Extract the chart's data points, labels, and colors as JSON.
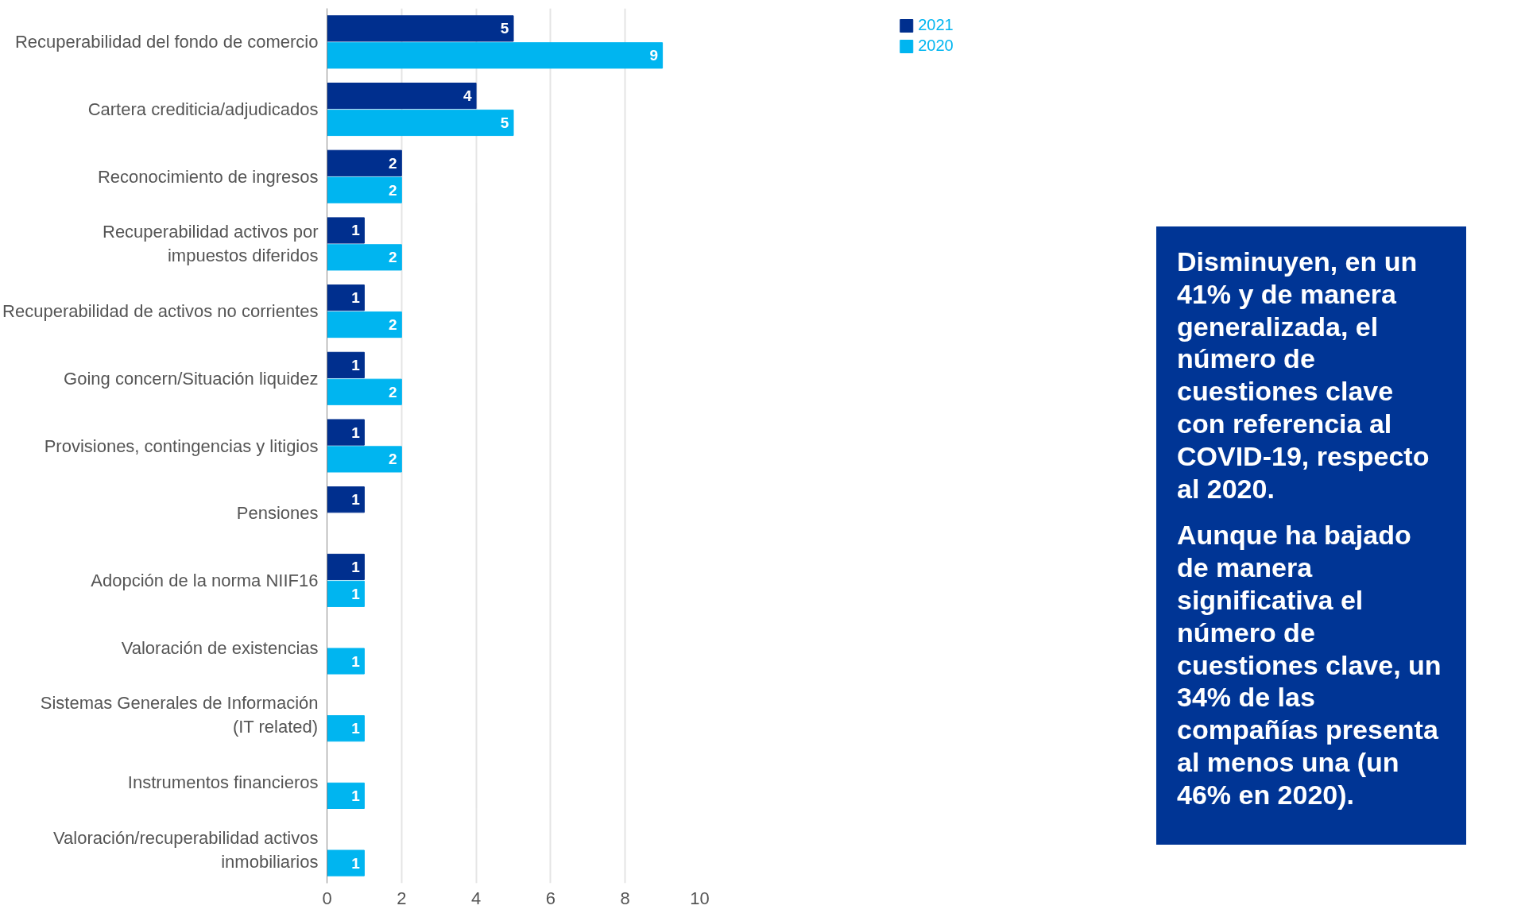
{
  "chart_data": {
    "type": "bar",
    "orientation": "horizontal",
    "categories": [
      "Recuperabilidad del fondo de comercio",
      "Cartera crediticia/adjudicados",
      "Reconocimiento de ingresos",
      "Recuperabilidad activos por\nimpuestos diferidos",
      "Recuperabilidad de activos no corrientes",
      "Going concern/Situación liquidez",
      "Provisiones, contingencias y litigios",
      "Pensiones",
      "Adopción de la norma NIIF16",
      "Valoración de existencias",
      "Sistemas Generales de Información\n(IT related)",
      "Instrumentos financieros",
      "Valoración/recuperabilidad activos\ninmobiliarios"
    ],
    "series": [
      {
        "name": "2021",
        "color": "#002f8e",
        "values": [
          5,
          4,
          2,
          1,
          1,
          1,
          1,
          1,
          1,
          null,
          null,
          null,
          null
        ]
      },
      {
        "name": "2020",
        "color": "#00b5f0",
        "values": [
          9,
          5,
          2,
          2,
          2,
          2,
          2,
          null,
          1,
          1,
          1,
          1,
          1
        ]
      }
    ],
    "xlim": [
      0,
      10
    ],
    "xticks": [
      0,
      2,
      4,
      6,
      8,
      10
    ],
    "grid": "x",
    "legend": "top right",
    "data_labels": true,
    "annotations": [
      "Disminuyen, en un 41% y de manera generalizada, el número de cuestiones clave con referencia al COVID-19, respecto al 2020.",
      "Aunque ha bajado de manera significativa el número de cuestiones clave, un 34% de las compañías presenta al menos una (un 46% en 2020)."
    ]
  }
}
